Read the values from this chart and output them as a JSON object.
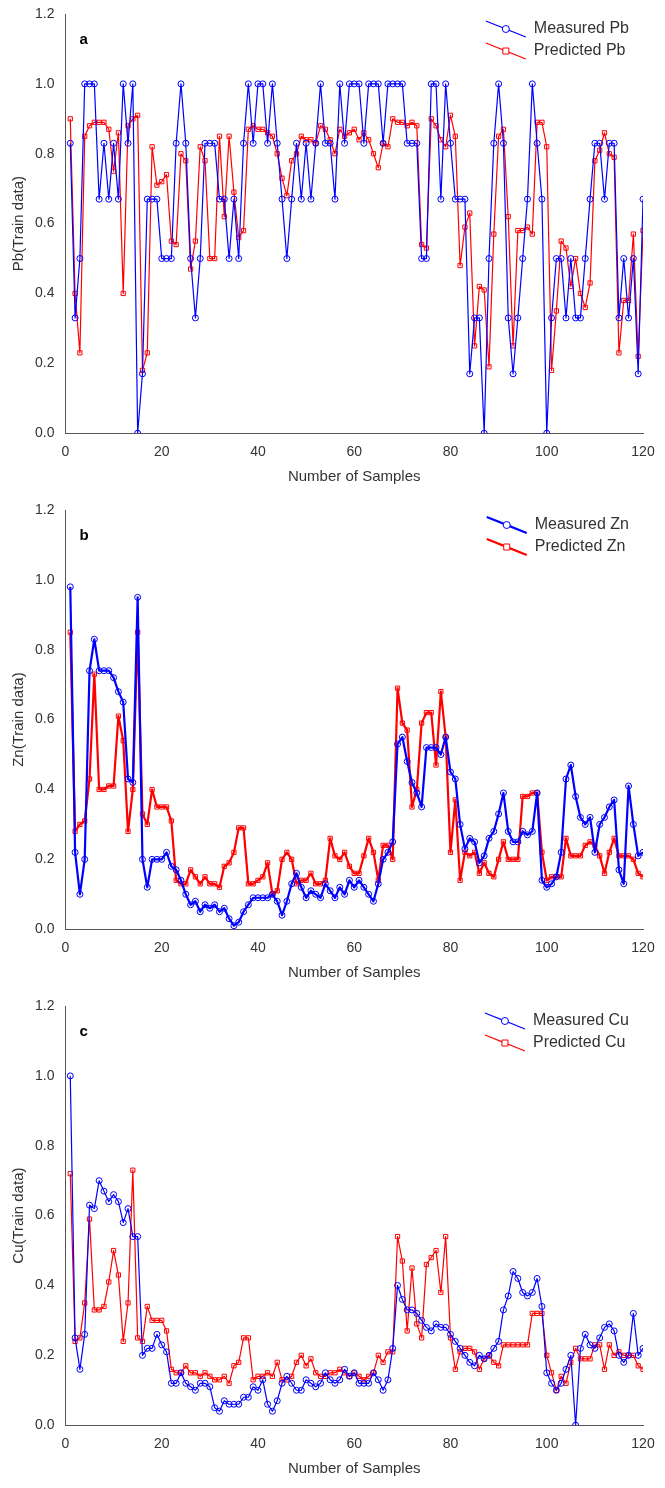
{
  "chart_data": [
    {
      "type": "line",
      "xlabel": "Number of Samples",
      "ylabel": "Pb(Train data)",
      "annotations": [
        "a"
      ],
      "legend": "top right",
      "grid": false,
      "line_style": "solid",
      "xlim": [
        0,
        120
      ],
      "xticks": [
        0,
        20,
        40,
        60,
        80,
        100,
        120
      ],
      "ylim": [
        0,
        1.2
      ],
      "yticks": [
        {
          "value": 0,
          "label": "0.0"
        },
        {
          "value": 0.2,
          "label": "0.2"
        },
        {
          "value": 0.4,
          "label": "0.4"
        },
        {
          "value": 0.6,
          "label": "0.6"
        },
        {
          "value": 0.8,
          "label": "0.8"
        },
        {
          "value": 1,
          "label": "1.0"
        },
        {
          "value": 1.2,
          "label": "1.2"
        }
      ],
      "x": [
        1,
        2,
        3,
        4,
        5,
        6,
        7,
        8,
        9,
        10,
        11,
        12,
        13,
        14,
        15,
        16,
        17,
        18,
        19,
        20,
        21,
        22,
        23,
        24,
        25,
        26,
        27,
        28,
        29,
        30,
        31,
        32,
        33,
        34,
        35,
        36,
        37,
        38,
        39,
        40,
        41,
        42,
        43,
        44,
        45,
        46,
        47,
        48,
        49,
        50,
        51,
        52,
        53,
        54,
        55,
        56,
        57,
        58,
        59,
        60,
        61,
        62,
        63,
        64,
        65,
        66,
        67,
        68,
        69,
        70,
        71,
        72,
        73,
        74,
        75,
        76,
        77,
        78,
        79,
        80,
        81,
        82,
        83,
        84,
        85,
        86,
        87,
        88,
        89,
        90,
        91,
        92,
        93,
        94,
        95,
        96,
        97,
        98,
        99,
        100,
        101,
        102,
        103,
        104,
        105,
        106,
        107,
        108,
        109,
        110,
        111,
        112,
        113,
        114,
        115,
        116,
        117,
        118,
        119,
        120
      ],
      "series": [
        {
          "name": "Measured Pb",
          "color": "#0000ff",
          "marker": "circle",
          "values": [
            0.83,
            0.33,
            0.5,
            1.0,
            1.0,
            1.0,
            0.67,
            0.83,
            0.67,
            0.83,
            0.67,
            1.0,
            0.83,
            1.0,
            0,
            0.17,
            0.67,
            0.67,
            0.67,
            0.5,
            0.5,
            0.5,
            0.83,
            1.0,
            0.83,
            0.5,
            0.33,
            0.5,
            0.83,
            0.83,
            0.83,
            0.67,
            0.67,
            0.5,
            0.67,
            0.5,
            0.83,
            1.0,
            0.83,
            1.0,
            1.0,
            0.83,
            1.0,
            0.83,
            0.67,
            0.5,
            0.67,
            0.83,
            0.67,
            0.83,
            0.67,
            0.83,
            1.0,
            0.83,
            0.83,
            0.67,
            1.0,
            0.83,
            1.0,
            1.0,
            1.0,
            0.83,
            1.0,
            1.0,
            1.0,
            0.83,
            1.0,
            1.0,
            1.0,
            1.0,
            0.83,
            0.83,
            0.83,
            0.5,
            0.5,
            1.0,
            1.0,
            0.67,
            1.0,
            0.83,
            0.67,
            0.67,
            0.67,
            0.17,
            0.33,
            0.33,
            0,
            0.5,
            0.83,
            1.0,
            0.83,
            0.33,
            0.17,
            0.33,
            0.5,
            0.67,
            1.0,
            0.83,
            0.67,
            0,
            0.33,
            0.5,
            0.5,
            0.33,
            0.5,
            0.33,
            0.33,
            0.5,
            0.67,
            0.83,
            0.83,
            0.67,
            0.83,
            0.83,
            0.33,
            0.5,
            0.33,
            0.5,
            0.17,
            0.67
          ]
        },
        {
          "name": "Predicted Pb",
          "color": "#ff0000",
          "marker": "square",
          "values": [
            0.9,
            0.4,
            0.23,
            0.85,
            0.88,
            0.89,
            0.89,
            0.89,
            0.87,
            0.75,
            0.86,
            0.4,
            0.88,
            0.9,
            0.91,
            0.18,
            0.23,
            0.82,
            0.71,
            0.72,
            0.74,
            0.55,
            0.54,
            0.8,
            0.78,
            0.47,
            0.55,
            0.82,
            0.78,
            0.5,
            0.5,
            0.85,
            0.62,
            0.85,
            0.69,
            0.56,
            0.58,
            0.87,
            0.88,
            0.87,
            0.87,
            0.86,
            0.85,
            0.8,
            0.73,
            0.68,
            0.78,
            0.8,
            0.85,
            0.84,
            0.84,
            0.83,
            0.88,
            0.87,
            0.84,
            0.8,
            0.87,
            0.85,
            0.86,
            0.87,
            0.84,
            0.86,
            0.84,
            0.8,
            0.76,
            0.83,
            0.82,
            0.9,
            0.89,
            0.89,
            0.88,
            0.89,
            0.88,
            0.54,
            0.53,
            0.9,
            0.88,
            0.84,
            0.82,
            0.91,
            0.85,
            0.48,
            0.59,
            0.63,
            0.25,
            0.42,
            0.41,
            0.19,
            0.57,
            0.85,
            0.87,
            0.62,
            0.25,
            0.58,
            0.58,
            0.59,
            0.57,
            0.89,
            0.89,
            0.82,
            0.18,
            0.35,
            0.55,
            0.53,
            0.42,
            0.5,
            0.4,
            0.36,
            0.43,
            0.78,
            0.81,
            0.86,
            0.8,
            0.79,
            0.23,
            0.38,
            0.38,
            0.57,
            0.22,
            0.58
          ]
        }
      ]
    },
    {
      "type": "line",
      "xlabel": "Number of Samples",
      "ylabel": "Zn(Train data)",
      "annotations": [
        "b"
      ],
      "legend": "top right",
      "grid": false,
      "line_style": "solid",
      "xlim": [
        0,
        120
      ],
      "xticks": [
        0,
        20,
        40,
        60,
        80,
        100,
        120
      ],
      "ylim": [
        0,
        1.2
      ],
      "yticks": [
        {
          "value": 0,
          "label": "0.0"
        },
        {
          "value": 0.2,
          "label": "0.2"
        },
        {
          "value": 0.4,
          "label": "0.4"
        },
        {
          "value": 0.6,
          "label": "0.6"
        },
        {
          "value": 0.8,
          "label": "0.8"
        },
        {
          "value": 1,
          "label": "1.0"
        },
        {
          "value": 1.2,
          "label": "1.2"
        }
      ],
      "x": [
        1,
        2,
        3,
        4,
        5,
        6,
        7,
        8,
        9,
        10,
        11,
        12,
        13,
        14,
        15,
        16,
        17,
        18,
        19,
        20,
        21,
        22,
        23,
        24,
        25,
        26,
        27,
        28,
        29,
        30,
        31,
        32,
        33,
        34,
        35,
        36,
        37,
        38,
        39,
        40,
        41,
        42,
        43,
        44,
        45,
        46,
        47,
        48,
        49,
        50,
        51,
        52,
        53,
        54,
        55,
        56,
        57,
        58,
        59,
        60,
        61,
        62,
        63,
        64,
        65,
        66,
        67,
        68,
        69,
        70,
        71,
        72,
        73,
        74,
        75,
        76,
        77,
        78,
        79,
        80,
        81,
        82,
        83,
        84,
        85,
        86,
        87,
        88,
        89,
        90,
        91,
        92,
        93,
        94,
        95,
        96,
        97,
        98,
        99,
        100,
        101,
        102,
        103,
        104,
        105,
        106,
        107,
        108,
        109,
        110,
        111,
        112,
        113,
        114,
        115,
        116,
        117,
        118,
        119,
        120
      ],
      "series": [
        {
          "name": "Measured Zn",
          "color": "#0000ff",
          "marker": "circle",
          "values": [
            0.98,
            0.22,
            0.1,
            0.2,
            0.74,
            0.83,
            0.74,
            0.74,
            0.74,
            0.72,
            0.68,
            0.65,
            0.43,
            0.42,
            0.95,
            0.2,
            0.12,
            0.2,
            0.2,
            0.2,
            0.22,
            0.18,
            0.17,
            0.14,
            0.1,
            0.07,
            0.08,
            0.05,
            0.07,
            0.06,
            0.07,
            0.05,
            0.06,
            0.03,
            0.01,
            0.02,
            0.05,
            0.07,
            0.09,
            0.09,
            0.09,
            0.09,
            0.1,
            0.08,
            0.04,
            0.08,
            0.13,
            0.16,
            0.12,
            0.09,
            0.11,
            0.1,
            0.09,
            0.13,
            0.11,
            0.09,
            0.12,
            0.1,
            0.14,
            0.12,
            0.14,
            0.12,
            0.1,
            0.08,
            0.13,
            0.2,
            0.22,
            0.25,
            0.53,
            0.55,
            0.48,
            0.42,
            0.39,
            0.35,
            0.52,
            0.52,
            0.52,
            0.5,
            0.55,
            0.45,
            0.43,
            0.3,
            0.23,
            0.26,
            0.25,
            0.19,
            0.21,
            0.26,
            0.28,
            0.33,
            0.39,
            0.28,
            0.25,
            0.25,
            0.28,
            0.27,
            0.28,
            0.39,
            0.14,
            0.12,
            0.13,
            0.15,
            0.22,
            0.43,
            0.47,
            0.38,
            0.32,
            0.3,
            0.32,
            0.22,
            0.3,
            0.32,
            0.35,
            0.37,
            0.17,
            0.13,
            0.41,
            0.3,
            0.21,
            0.22
          ]
        },
        {
          "name": "Predicted Zn",
          "color": "#ff0000",
          "marker": "square",
          "values": [
            0.85,
            0.28,
            0.3,
            0.31,
            0.43,
            0.73,
            0.4,
            0.4,
            0.41,
            0.41,
            0.61,
            0.54,
            0.28,
            0.4,
            0.85,
            0.33,
            0.3,
            0.4,
            0.35,
            0.35,
            0.35,
            0.31,
            0.14,
            0.13,
            0.13,
            0.17,
            0.15,
            0.13,
            0.15,
            0.13,
            0.13,
            0.12,
            0.18,
            0.19,
            0.22,
            0.29,
            0.29,
            0.13,
            0.13,
            0.14,
            0.15,
            0.19,
            0.1,
            0.11,
            0.2,
            0.22,
            0.2,
            0.13,
            0.14,
            0.14,
            0.16,
            0.13,
            0.13,
            0.14,
            0.26,
            0.21,
            0.2,
            0.22,
            0.18,
            0.16,
            0.16,
            0.21,
            0.26,
            0.22,
            0.14,
            0.24,
            0.24,
            0.2,
            0.69,
            0.59,
            0.57,
            0.35,
            0.4,
            0.59,
            0.62,
            0.62,
            0.47,
            0.68,
            0.55,
            0.22,
            0.37,
            0.14,
            0.22,
            0.21,
            0.22,
            0.16,
            0.19,
            0.16,
            0.15,
            0.2,
            0.25,
            0.2,
            0.2,
            0.2,
            0.38,
            0.38,
            0.39,
            0.39,
            0.22,
            0.14,
            0.15,
            0.15,
            0.15,
            0.26,
            0.21,
            0.21,
            0.21,
            0.24,
            0.25,
            0.24,
            0.21,
            0.16,
            0.22,
            0.26,
            0.21,
            0.21,
            0.21,
            0.2,
            0.16,
            0.15
          ]
        }
      ]
    },
    {
      "type": "line",
      "xlabel": "Number of Samples",
      "ylabel": "Cu(Train data)",
      "annotations": [
        "c"
      ],
      "legend": "top right",
      "grid": false,
      "line_style": "solid",
      "xlim": [
        0,
        120
      ],
      "xticks": [
        0,
        20,
        40,
        60,
        80,
        100,
        120
      ],
      "ylim": [
        0,
        1.2
      ],
      "yticks": [
        {
          "value": 0,
          "label": "0.0"
        },
        {
          "value": 0.2,
          "label": "0.2"
        },
        {
          "value": 0.4,
          "label": "0.4"
        },
        {
          "value": 0.6,
          "label": "0.6"
        },
        {
          "value": 0.8,
          "label": "0.8"
        },
        {
          "value": 1,
          "label": "1.0"
        },
        {
          "value": 1.2,
          "label": "1.2"
        }
      ],
      "x": [
        1,
        2,
        3,
        4,
        5,
        6,
        7,
        8,
        9,
        10,
        11,
        12,
        13,
        14,
        15,
        16,
        17,
        18,
        19,
        20,
        21,
        22,
        23,
        24,
        25,
        26,
        27,
        28,
        29,
        30,
        31,
        32,
        33,
        34,
        35,
        36,
        37,
        38,
        39,
        40,
        41,
        42,
        43,
        44,
        45,
        46,
        47,
        48,
        49,
        50,
        51,
        52,
        53,
        54,
        55,
        56,
        57,
        58,
        59,
        60,
        61,
        62,
        63,
        64,
        65,
        66,
        67,
        68,
        69,
        70,
        71,
        72,
        73,
        74,
        75,
        76,
        77,
        78,
        79,
        80,
        81,
        82,
        83,
        84,
        85,
        86,
        87,
        88,
        89,
        90,
        91,
        92,
        93,
        94,
        95,
        96,
        97,
        98,
        99,
        100,
        101,
        102,
        103,
        104,
        105,
        106,
        107,
        108,
        109,
        110,
        111,
        112,
        113,
        114,
        115,
        116,
        117,
        118,
        119,
        120
      ],
      "series": [
        {
          "name": "Measured Cu",
          "color": "#0000ff",
          "marker": "circle",
          "values": [
            1.0,
            0.25,
            0.16,
            0.26,
            0.63,
            0.62,
            0.7,
            0.67,
            0.64,
            0.66,
            0.64,
            0.58,
            0.62,
            0.54,
            0.54,
            0.2,
            0.22,
            0.22,
            0.26,
            0.23,
            0.21,
            0.12,
            0.12,
            0.15,
            0.12,
            0.11,
            0.1,
            0.12,
            0.12,
            0.11,
            0.05,
            0.04,
            0.07,
            0.06,
            0.06,
            0.06,
            0.08,
            0.08,
            0.11,
            0.1,
            0.13,
            0.06,
            0.04,
            0.07,
            0.12,
            0.14,
            0.12,
            0.1,
            0.1,
            0.13,
            0.12,
            0.11,
            0.12,
            0.15,
            0.13,
            0.12,
            0.13,
            0.16,
            0.14,
            0.15,
            0.12,
            0.12,
            0.12,
            0.15,
            0.13,
            0.1,
            0.13,
            0.22,
            0.4,
            0.36,
            0.33,
            0.33,
            0.32,
            0.3,
            0.28,
            0.27,
            0.29,
            0.28,
            0.28,
            0.26,
            0.24,
            0.22,
            0.2,
            0.18,
            0.17,
            0.2,
            0.19,
            0.2,
            0.22,
            0.24,
            0.33,
            0.37,
            0.44,
            0.42,
            0.38,
            0.37,
            0.38,
            0.42,
            0.34,
            0.15,
            0.12,
            0.1,
            0.12,
            0.16,
            0.2,
            0.0,
            0.22,
            0.26,
            0.23,
            0.22,
            0.25,
            0.28,
            0.29,
            0.27,
            0.2,
            0.18,
            0.2,
            0.32,
            0.2,
            0.22
          ]
        },
        {
          "name": "Predicted Cu",
          "color": "#ff0000",
          "marker": "square",
          "values": [
            0.72,
            0.24,
            0.25,
            0.35,
            0.59,
            0.33,
            0.33,
            0.34,
            0.41,
            0.5,
            0.43,
            0.24,
            0.35,
            0.73,
            0.25,
            0.24,
            0.34,
            0.3,
            0.3,
            0.3,
            0.27,
            0.16,
            0.15,
            0.15,
            0.17,
            0.15,
            0.15,
            0.14,
            0.15,
            0.14,
            0.13,
            0.13,
            0.14,
            0.12,
            0.17,
            0.18,
            0.25,
            0.25,
            0.13,
            0.14,
            0.14,
            0.15,
            0.14,
            0.18,
            0.13,
            0.13,
            0.14,
            0.18,
            0.2,
            0.17,
            0.19,
            0.15,
            0.14,
            0.14,
            0.15,
            0.15,
            0.16,
            0.15,
            0.14,
            0.15,
            0.14,
            0.13,
            0.14,
            0.15,
            0.2,
            0.18,
            0.21,
            0.21,
            0.54,
            0.47,
            0.27,
            0.45,
            0.29,
            0.25,
            0.46,
            0.48,
            0.5,
            0.38,
            0.54,
            0.25,
            0.16,
            0.21,
            0.22,
            0.22,
            0.21,
            0.16,
            0.19,
            0.2,
            0.18,
            0.17,
            0.23,
            0.23,
            0.23,
            0.23,
            0.23,
            0.23,
            0.32,
            0.32,
            0.32,
            0.2,
            0.15,
            0.1,
            0.14,
            0.12,
            0.18,
            0.22,
            0.19,
            0.19,
            0.19,
            0.23,
            0.23,
            0.16,
            0.23,
            0.2,
            0.21,
            0.2,
            0.2,
            0.2,
            0.17,
            0.16
          ]
        }
      ]
    }
  ]
}
